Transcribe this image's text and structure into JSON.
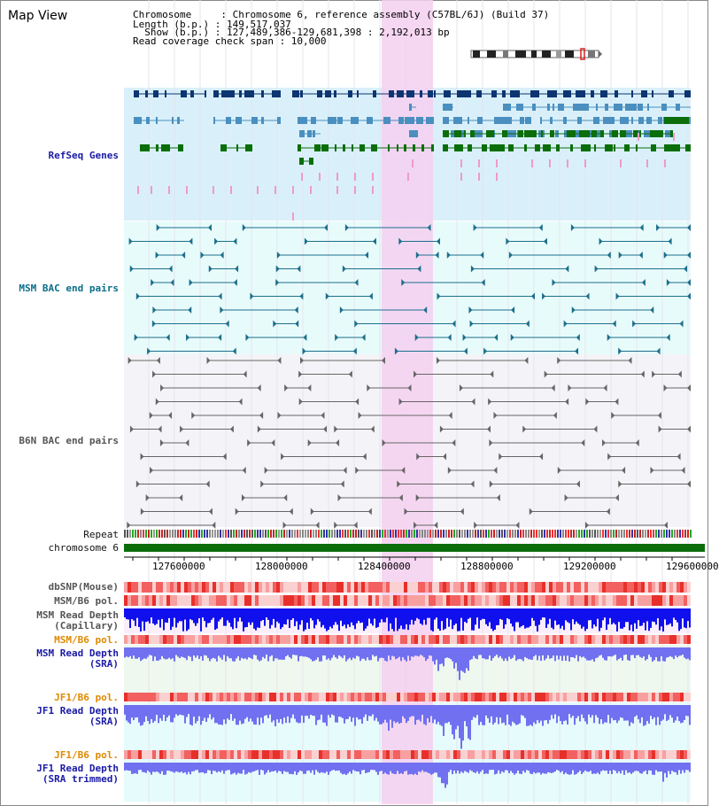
{
  "page": {
    "title": "Map View"
  },
  "header": {
    "lines": [
      "Chromosome     : Chromosome 6, reference assembly (C57BL/6J) (Build 37)",
      "Length (b.p.) : 149,517,037",
      "  Show (b.p.) : 127,489,386-129,681,398 : 2,192,013 bp",
      "Read coverage check span : 10,000"
    ]
  },
  "tracks": {
    "refseq": "RefSeq Genes",
    "msm_bac": "MSM BAC end pairs",
    "b6n_bac": "B6N BAC end pairs",
    "repeat": "Repeat",
    "chromosome": "chromosome 6",
    "dbsnp": "dbSNP(Mouse)",
    "msm_b6_pol_1": "MSM/B6 pol.",
    "msm_read_depth_cap_1": "MSM Read Depth",
    "msm_read_depth_cap_2": "(Capillary)",
    "msm_b6_pol_2": "MSM/B6 pol.",
    "msm_read_depth_sra_1": "MSM Read Depth",
    "msm_read_depth_sra_2": "(SRA)",
    "jf1_b6_pol_1": "JF1/B6 pol.",
    "jf1_read_depth_sra_1": "JF1 Read Depth",
    "jf1_read_depth_sra_2": "(SRA)",
    "jf1_b6_pol_2": "JF1/B6 pol.",
    "jf1_read_depth_trim_1": "JF1 Read Depth",
    "jf1_read_depth_trim_2": "(SRA trimmed)"
  },
  "axis": {
    "ticks": [
      "127600000",
      "128000000",
      "128400000",
      "128800000",
      "129200000",
      "129600000"
    ]
  },
  "colors": {
    "highlight": "#f5d0f0",
    "refseq_bg": "#d9f0fa",
    "msm_bg": "#e8fbfb",
    "b6n_bg": "#f4f4f8",
    "dark_gene": "#0d3572",
    "mid_gene": "#4a8fbf",
    "green_gene": "#0b6e0b",
    "pink": "#f09ac8",
    "chromosome_bar": "#0b6e0b",
    "depth_blue": "#1010ee",
    "depth_light": "#7070f0"
  }
}
